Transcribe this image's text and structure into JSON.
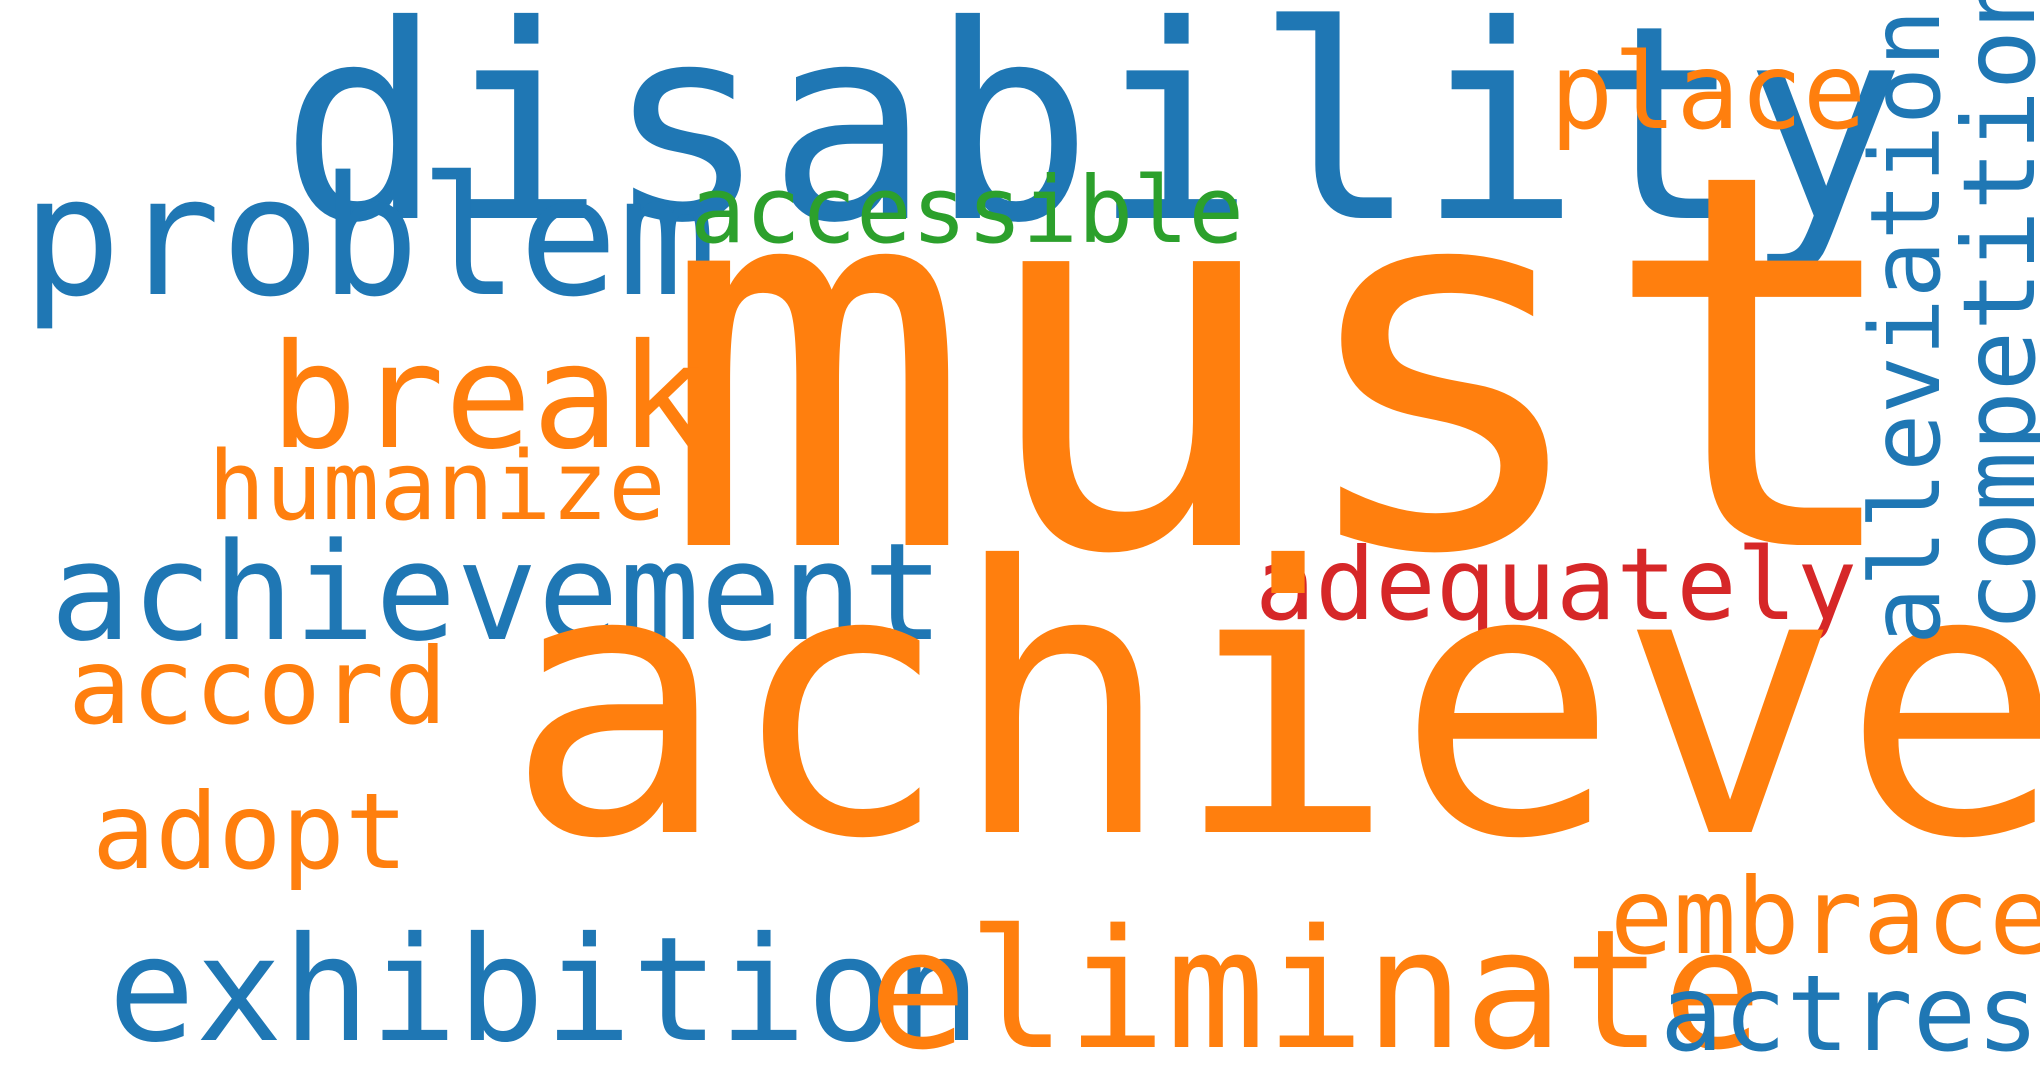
{
  "colors": {
    "blue": "#1f77b4",
    "orange": "#ff7f0e",
    "green": "#2ca02c",
    "red": "#d62728",
    "background": "#ffffff"
  },
  "words": {
    "disability": "disability",
    "place": "place",
    "problem": "problem",
    "accessible": "accessible",
    "must": "must",
    "break": "break",
    "humanize": "humanize",
    "achievement": "achievement",
    "adequately": "adequately",
    "accord": "accord",
    "achieve": "achieve",
    "adopt": "adopt",
    "embrace": "embrace",
    "exhibition": "exhibition",
    "eliminate": "eliminate",
    "actress": "actress",
    "alleviation": "alleviation",
    "competition": "competition"
  },
  "word_colors": {
    "disability": "#1f77b4",
    "place": "#ff7f0e",
    "problem": "#1f77b4",
    "accessible": "#2ca02c",
    "must": "#ff7f0e",
    "break": "#ff7f0e",
    "humanize": "#ff7f0e",
    "achievement": "#1f77b4",
    "adequately": "#d62728",
    "accord": "#ff7f0e",
    "achieve": "#ff7f0e",
    "adopt": "#ff7f0e",
    "embrace": "#ff7f0e",
    "exhibition": "#1f77b4",
    "eliminate": "#ff7f0e",
    "actress": "#1f77b4",
    "alleviation": "#1f77b4",
    "competition": "#1f77b4"
  }
}
